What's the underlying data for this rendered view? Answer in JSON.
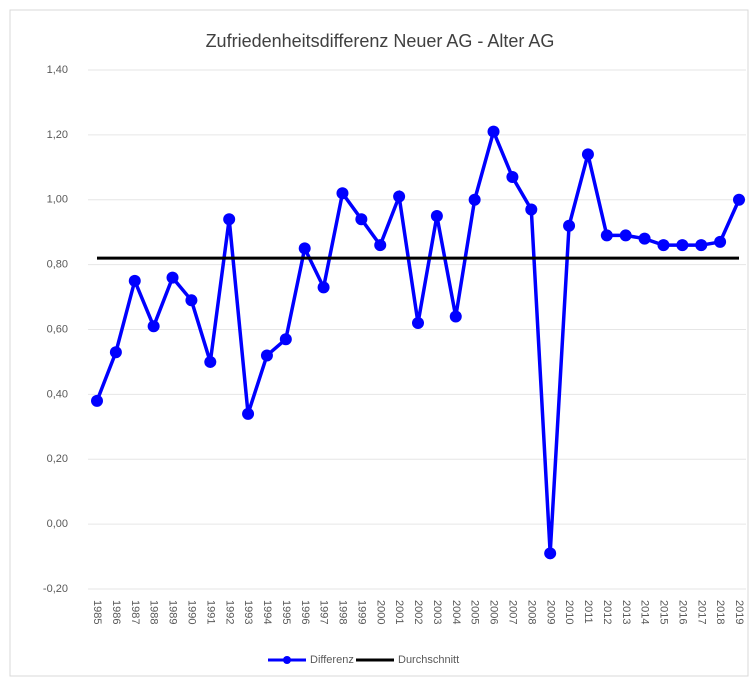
{
  "chart_data": {
    "type": "line",
    "title": "Zufriedenheitsdifferenz  Neuer AG - Alter AG",
    "categories": [
      "1985",
      "1986",
      "1987",
      "1988",
      "1989",
      "1990",
      "1991",
      "1992",
      "1993",
      "1994",
      "1995",
      "1996",
      "1997",
      "1998",
      "1999",
      "2000",
      "2001",
      "2002",
      "2003",
      "2004",
      "2005",
      "2006",
      "2007",
      "2008",
      "2009",
      "2010",
      "2011",
      "2012",
      "2013",
      "2014",
      "2015",
      "2016",
      "2017",
      "2018",
      "2019"
    ],
    "series": [
      {
        "name": "Differenz",
        "color": "#0000ff",
        "marker": true,
        "values": [
          0.38,
          0.53,
          0.75,
          0.61,
          0.76,
          0.69,
          0.5,
          0.94,
          0.34,
          0.52,
          0.57,
          0.85,
          0.73,
          1.02,
          0.94,
          0.86,
          1.01,
          0.62,
          0.95,
          0.64,
          1.0,
          1.21,
          1.07,
          0.97,
          -0.09,
          0.92,
          1.14,
          0.89,
          0.89,
          0.88,
          0.86,
          0.86,
          0.86,
          0.87,
          1.0
        ]
      },
      {
        "name": "Durchschnitt",
        "color": "#000000",
        "marker": false,
        "values": [
          0.82,
          0.82,
          0.82,
          0.82,
          0.82,
          0.82,
          0.82,
          0.82,
          0.82,
          0.82,
          0.82,
          0.82,
          0.82,
          0.82,
          0.82,
          0.82,
          0.82,
          0.82,
          0.82,
          0.82,
          0.82,
          0.82,
          0.82,
          0.82,
          0.82,
          0.82,
          0.82,
          0.82,
          0.82,
          0.82,
          0.82,
          0.82,
          0.82,
          0.82,
          0.82
        ]
      }
    ],
    "ylim": [
      -0.2,
      1.4
    ],
    "yticks": [
      {
        "value": -0.2,
        "label": "-0,20"
      },
      {
        "value": 0,
        "label": "0,00"
      },
      {
        "value": 0.2,
        "label": "0,20"
      },
      {
        "value": 0.4,
        "label": "0,40"
      },
      {
        "value": 0.6,
        "label": "0,60"
      },
      {
        "value": 0.8,
        "label": "0,80"
      },
      {
        "value": 1.0,
        "label": "1,00"
      },
      {
        "value": 1.2,
        "label": "1,20"
      },
      {
        "value": 1.4,
        "label": "1,40"
      }
    ],
    "grid": true,
    "legend": "bottom"
  }
}
